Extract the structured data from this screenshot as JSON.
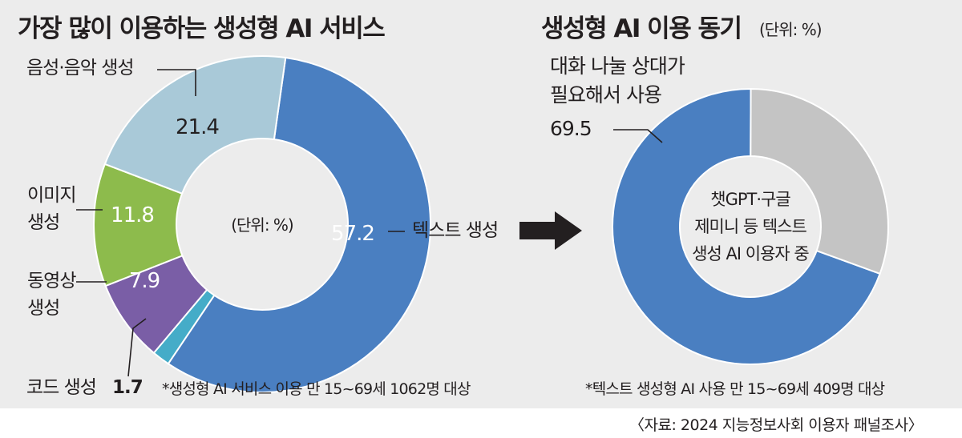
{
  "chart_data": [
    {
      "type": "pie",
      "title": "가장 많이 이용하는 생성형 AI 서비스",
      "unit_note": "(단위: %)",
      "slices": [
        {
          "label": "텍스트 생성",
          "value": 57.2,
          "display": "57.2",
          "color": "#4a7fc1"
        },
        {
          "label": "코드 생성",
          "value": 1.7,
          "display": "1.7",
          "color": "#45acc8"
        },
        {
          "label_lines": [
            "동영상",
            "생성"
          ],
          "value": 7.9,
          "display": "7.9",
          "color": "#7a5ea6"
        },
        {
          "label_lines": [
            "이미지",
            "생성"
          ],
          "value": 11.8,
          "display": "11.8",
          "color": "#8dbb4c"
        },
        {
          "label": "음성·음악 생성",
          "value": 21.4,
          "display": "21.4",
          "color": "#a9c9d8"
        }
      ],
      "footnote": "*생성형 AI 서비스 이용 만 15~69세 1062명 대상"
    },
    {
      "type": "pie",
      "title": "생성형 AI 이용 동기",
      "unit_note": "(단위: %)",
      "slices": [
        {
          "label_lines": [
            "대화 나눌 상대가",
            "필요해서 사용"
          ],
          "value": 69.5,
          "display": "69.5",
          "color": "#4a7fc1"
        },
        {
          "label": "",
          "value": 30.5,
          "display": "",
          "color": "#c4c4c4"
        }
      ],
      "center_lines": [
        "챗GPT·구글",
        "제미니 등 텍스트",
        "생성 AI 이용자 중"
      ],
      "footnote": "*텍스트 생성형 AI 사용 만 15~69세 409명 대상"
    }
  ],
  "source": "〈자료: 2024 지능정보사회 이용자 패널조사〉",
  "colors": {
    "text": "#231f20",
    "panel": "#ececec",
    "arrow": "#231f20"
  }
}
